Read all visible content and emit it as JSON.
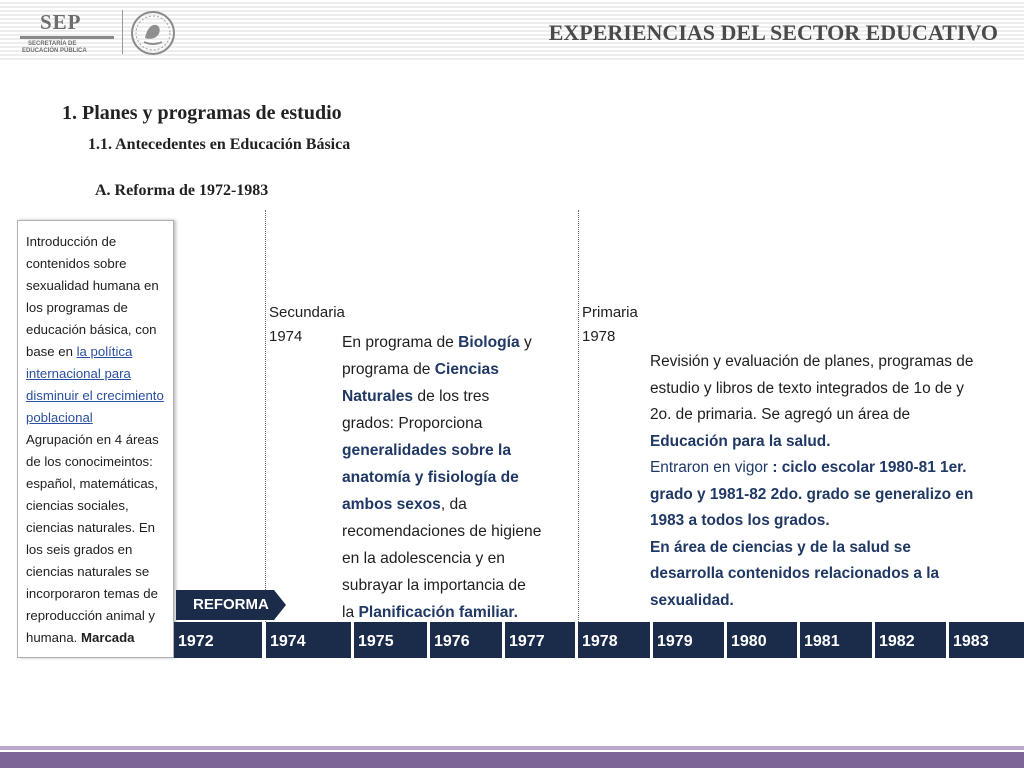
{
  "header": {
    "title": "EXPERIENCIAS DEL SECTOR EDUCATIVO",
    "logo": {
      "word": "SEP",
      "line1": "SECRETARÍA DE",
      "line2": "EDUCACIÓN PÚBLICA",
      "seal_icon": "mexican-eagle-seal-icon"
    }
  },
  "headings": {
    "h1": "1. Planes y programas de estudio",
    "h2": "1.1. Antecedentes en Educación Básica",
    "h3": "A. Reforma de 1972-1983"
  },
  "left_box": {
    "p1": "Introducción de contenidos sobre sexualidad humana en los programas de educación básica, con base en ",
    "link": "la política internacional para disminuir el crecimiento poblacional",
    "p2": "Agrupación en 4 áreas de los conocimeintos: español, matemáticas, ciencias sociales, ciencias naturales. En los seis grados en ciencias naturales se incorporaron temas de reproducción animal y humana.",
    "p2_bold": "Marcada"
  },
  "secundaria": {
    "label_line1": "Secundaria",
    "label_line2": "1974",
    "t1": "En programa de ",
    "b1": "Biología",
    "t2": " y programa de ",
    "b2": "Ciencias Naturales",
    "t3": " de los tres grados: Proporciona ",
    "b3": "generalidades sobre la anatomía y fisiología de ambos sexos",
    "t4": ", da recomendaciones de higiene en la adolescencia y en subrayar la importancia de la ",
    "b4": "Planificación familiar."
  },
  "primaria": {
    "label_line1": "Primaria",
    "label_line2": "1978",
    "t1": "Revisión y evaluación de  planes, programas de estudio y libros de texto integrados de 1o de y  2o. de primaria.  Se agregó un área de ",
    "b1": "Educación para la salud.",
    "t2": "Entraron en vigor",
    "b2": " : ciclo escolar 1980-81 1er. grado y 1981-82 2do. grado se generalizo en 1983 a todos los grados.",
    "b3": "En área de ciencias y de la salud se desarrolla contenidos relacionados a la sexualidad."
  },
  "reforma_label": "REFORMA",
  "timeline": {
    "years": [
      "1972",
      "1974",
      "1975",
      "1976",
      "1977",
      "1978",
      "1979",
      "1980",
      "1981",
      "1982",
      "1983"
    ],
    "color": "#1b2c4b"
  },
  "colors": {
    "accent_blue": "#1f3864",
    "link_blue": "#2a4fa0",
    "footer_purple": "#7e6598"
  }
}
